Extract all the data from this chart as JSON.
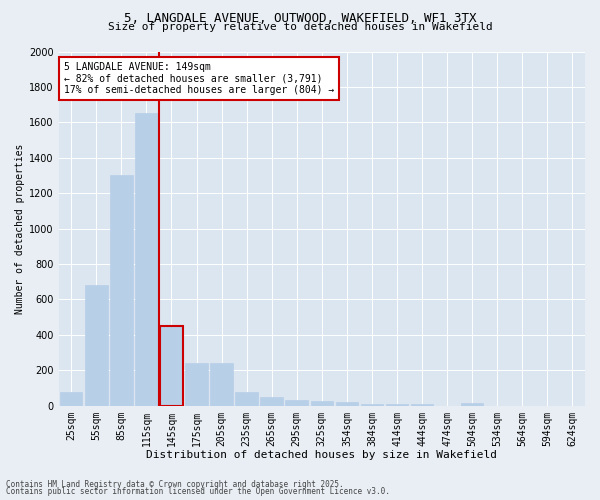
{
  "title_line1": "5, LANGDALE AVENUE, OUTWOOD, WAKEFIELD, WF1 3TX",
  "title_line2": "Size of property relative to detached houses in Wakefield",
  "xlabel": "Distribution of detached houses by size in Wakefield",
  "ylabel": "Number of detached properties",
  "annotation_line1": "5 LANGDALE AVENUE: 149sqm",
  "annotation_line2": "← 82% of detached houses are smaller (3,791)",
  "annotation_line3": "17% of semi-detached houses are larger (804) →",
  "footer_line1": "Contains HM Land Registry data © Crown copyright and database right 2025.",
  "footer_line2": "Contains public sector information licensed under the Open Government Licence v3.0.",
  "categories": [
    "25sqm",
    "55sqm",
    "85sqm",
    "115sqm",
    "145sqm",
    "175sqm",
    "205sqm",
    "235sqm",
    "265sqm",
    "295sqm",
    "325sqm",
    "354sqm",
    "384sqm",
    "414sqm",
    "444sqm",
    "474sqm",
    "504sqm",
    "534sqm",
    "564sqm",
    "594sqm",
    "624sqm"
  ],
  "values": [
    75,
    680,
    1300,
    1650,
    450,
    240,
    240,
    80,
    50,
    35,
    25,
    20,
    10,
    10,
    10,
    0,
    15,
    0,
    0,
    0,
    0
  ],
  "bar_color": "#b8cfe8",
  "bar_edgecolor": "#b8cfe8",
  "highlight_index": 4,
  "highlight_color": "#cc0000",
  "ylim": [
    0,
    2000
  ],
  "yticks": [
    0,
    200,
    400,
    600,
    800,
    1000,
    1200,
    1400,
    1600,
    1800,
    2000
  ],
  "bg_color": "#e8eef4",
  "plot_bg_color": "#dce6f0",
  "grid_color": "#ffffff",
  "annotation_box_edgecolor": "#cc0000",
  "annotation_box_facecolor": "#ffffff",
  "title_fontsize": 9,
  "subtitle_fontsize": 8,
  "ylabel_fontsize": 7,
  "xlabel_fontsize": 8,
  "tick_fontsize": 7,
  "annot_fontsize": 7,
  "footer_fontsize": 5.5
}
